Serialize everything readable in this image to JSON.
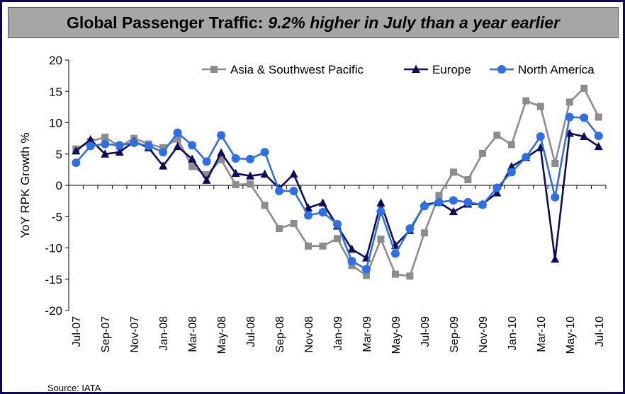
{
  "title": {
    "main": "Global Passenger Traffic:",
    "emphasis": "9.2% higher in July than a year earlier"
  },
  "source": "Source: IATA",
  "colors": {
    "asia": "#8c8c8c",
    "europe": "#0d0d5e",
    "north_america": "#2f6fe6"
  },
  "chart_data": {
    "type": "line",
    "ylabel": "YoY RPK Growth %",
    "xlabel": "",
    "ylim": [
      -20,
      20
    ],
    "y_ticks": [
      20,
      15,
      10,
      5,
      0,
      -5,
      -10,
      -15,
      -20
    ],
    "legend_position": "top-right",
    "grid": false,
    "x": [
      "Jul-07",
      "Aug-07",
      "Sep-07",
      "Oct-07",
      "Nov-07",
      "Dec-07",
      "Jan-08",
      "Feb-08",
      "Mar-08",
      "Apr-08",
      "May-08",
      "Jun-08",
      "Jul-08",
      "Aug-08",
      "Sep-08",
      "Oct-08",
      "Nov-08",
      "Dec-08",
      "Jan-09",
      "Feb-09",
      "Mar-09",
      "Apr-09",
      "May-09",
      "Jun-09",
      "Jul-09",
      "Aug-09",
      "Sep-09",
      "Oct-09",
      "Nov-09",
      "Dec-09",
      "Jan-10",
      "Feb-10",
      "Mar-10",
      "Apr-10",
      "May-10",
      "Jun-10",
      "Jul-10"
    ],
    "x_tick_labels": [
      "Jul-07",
      "Sep-07",
      "Nov-07",
      "Jan-08",
      "Mar-08",
      "May-08",
      "Jul-08",
      "Sep-08",
      "Nov-08",
      "Jan-09",
      "Mar-09",
      "May-09",
      "Jul-09",
      "Sep-09",
      "Nov-09",
      "Jan-10",
      "Mar-10",
      "May-10",
      "Jul-10"
    ],
    "series": [
      {
        "name": "Asia & Southwest Pacific",
        "marker": "square",
        "values": [
          5.8,
          7.0,
          7.7,
          6.2,
          7.5,
          6.6,
          6.0,
          7.4,
          3.0,
          1.7,
          4.1,
          0.1,
          0.2,
          -3.2,
          -6.9,
          -6.1,
          -9.7,
          -9.7,
          -8.5,
          -12.8,
          -14.4,
          -8.6,
          -14.2,
          -14.5,
          -7.6,
          -1.6,
          2.1,
          0.9,
          5.1,
          8.0,
          6.5,
          13.5,
          12.6,
          3.5,
          13.3,
          15.5,
          10.9
        ]
      },
      {
        "name": "Europe",
        "marker": "triangle",
        "values": [
          5.5,
          7.3,
          5.0,
          5.3,
          7.0,
          6.0,
          3.1,
          6.2,
          4.2,
          0.8,
          5.2,
          1.9,
          1.5,
          1.8,
          -0.5,
          1.8,
          -3.6,
          -2.8,
          -6.5,
          -10.2,
          -11.6,
          -2.8,
          -9.6,
          -7.2,
          -3.1,
          -2.7,
          -4.2,
          -3.0,
          -3.0,
          -1.2,
          3.0,
          4.4,
          6.0,
          -11.8,
          8.3,
          7.8,
          6.2
        ]
      },
      {
        "name": "North America",
        "marker": "circle",
        "values": [
          3.6,
          6.3,
          6.6,
          6.4,
          6.8,
          6.3,
          5.3,
          8.4,
          6.4,
          3.8,
          8.0,
          4.3,
          4.2,
          5.3,
          -0.9,
          -0.9,
          -4.8,
          -4.3,
          -6.2,
          -12.1,
          -13.4,
          -4.2,
          -10.9,
          -6.9,
          -3.3,
          -2.7,
          -2.4,
          -2.7,
          -3.1,
          -0.4,
          2.1,
          4.5,
          7.8,
          -1.9,
          10.9,
          10.8,
          7.9
        ]
      }
    ]
  }
}
